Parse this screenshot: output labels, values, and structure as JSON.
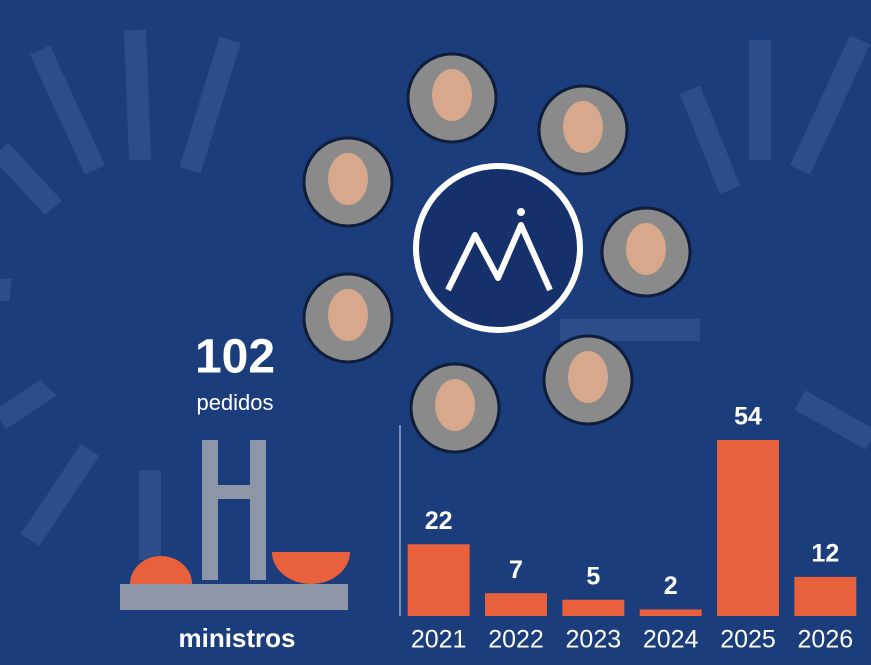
{
  "chart_data": {
    "type": "bar",
    "headline_value": "102",
    "headline_label": "pedidos",
    "footer_label": "ministros",
    "categories": [
      "2021",
      "2022",
      "2023",
      "2024",
      "2025",
      "2026"
    ],
    "values": [
      22,
      7,
      5,
      2,
      54,
      12
    ],
    "color": "#e8603c"
  }
}
